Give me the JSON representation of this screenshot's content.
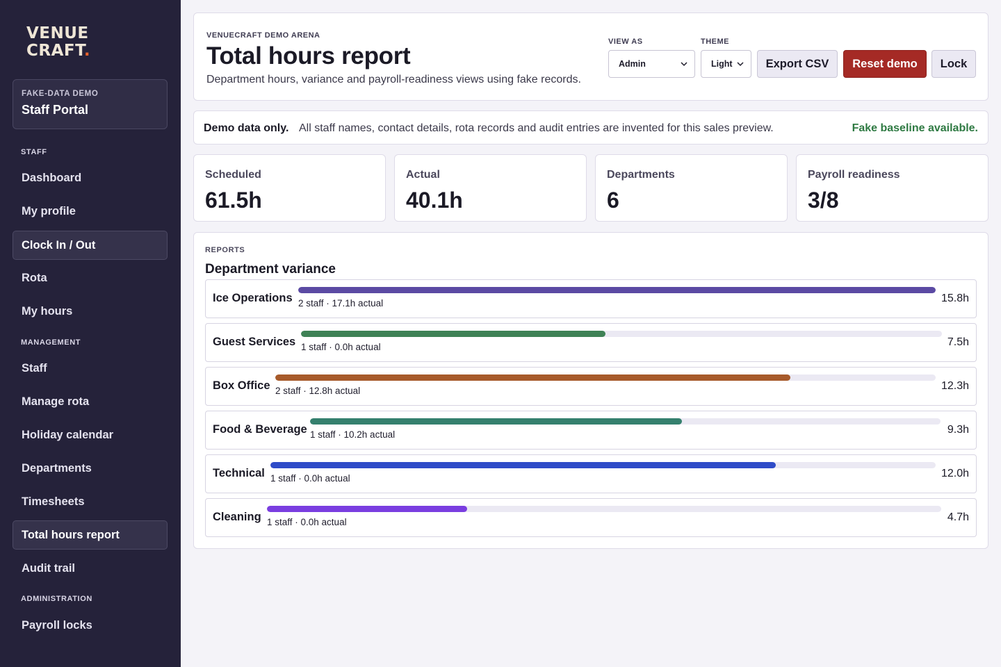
{
  "brand": {
    "line1": "VENUE",
    "line2": "CRAFT",
    "dot": "."
  },
  "sidebar": {
    "portal": {
      "eyebrow": "FAKE-DATA DEMO",
      "name": "Staff Portal"
    },
    "sections": [
      {
        "label": "STAFF",
        "items": [
          "Dashboard",
          "My profile",
          "Clock In / Out",
          "Rota",
          "My hours"
        ]
      },
      {
        "label": "MANAGEMENT",
        "items": [
          "Staff",
          "Manage rota",
          "Holiday calendar",
          "Departments",
          "Timesheets",
          "Total hours report",
          "Audit trail"
        ]
      },
      {
        "label": "ADMINISTRATION",
        "items": [
          "Payroll locks"
        ]
      }
    ],
    "active_items": [
      "Clock In / Out",
      "Total hours report"
    ]
  },
  "header": {
    "eyebrow": "VENUECRAFT DEMO ARENA",
    "title": "Total hours report",
    "subtitle": "Department hours, variance and payroll-readiness views using fake records.",
    "view_as": {
      "label": "VIEW AS",
      "value": "Admin"
    },
    "theme": {
      "label": "THEME",
      "value": "Light"
    },
    "buttons": {
      "export": "Export CSV",
      "reset": "Reset demo",
      "lock": "Lock"
    }
  },
  "notice": {
    "strong": "Demo data only.",
    "message": "All staff names, contact details, rota records and audit entries are invented for this sales preview.",
    "status": "Fake baseline available."
  },
  "stats": [
    {
      "label": "Scheduled",
      "value": "61.5h"
    },
    {
      "label": "Actual",
      "value": "40.1h"
    },
    {
      "label": "Departments",
      "value": "6"
    },
    {
      "label": "Payroll readiness",
      "value": "3/8"
    }
  ],
  "reports": {
    "eyebrow": "REPORTS",
    "heading": "Department variance",
    "rows": [
      {
        "name": "Ice Operations",
        "meta": "2 staff · 17.1h actual",
        "hours": "15.8h",
        "progress": 1.0,
        "color": "#5b4aa3"
      },
      {
        "name": "Guest Services",
        "meta": "1 staff · 0.0h actual",
        "hours": "7.5h",
        "progress": 0.475,
        "color": "#3f8256"
      },
      {
        "name": "Box Office",
        "meta": "2 staff · 12.8h actual",
        "hours": "12.3h",
        "progress": 0.78,
        "color": "#a75a2a"
      },
      {
        "name": "Food & Beverage",
        "meta": "1 staff · 10.2h actual",
        "hours": "9.3h",
        "progress": 0.59,
        "color": "#35806e"
      },
      {
        "name": "Technical",
        "meta": "1 staff · 0.0h actual",
        "hours": "12.0h",
        "progress": 0.76,
        "color": "#2f4cc8"
      },
      {
        "name": "Cleaning",
        "meta": "1 staff · 0.0h actual",
        "hours": "4.7h",
        "progress": 0.297,
        "color": "#7a3ee0"
      }
    ]
  }
}
